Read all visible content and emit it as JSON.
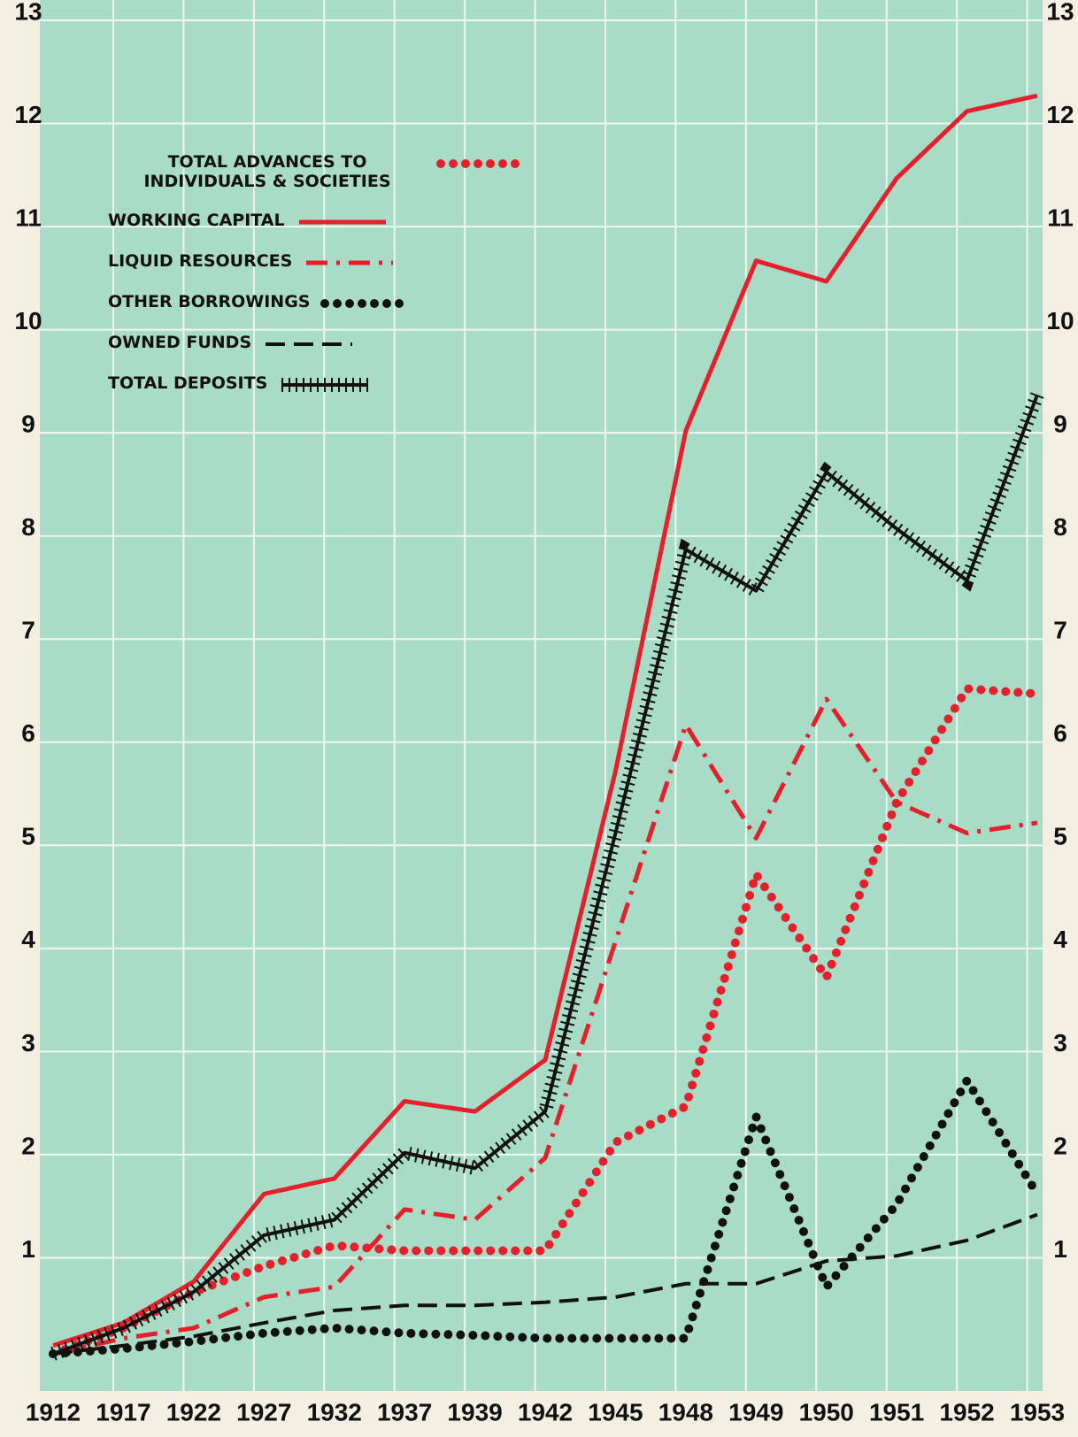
{
  "chart_data": {
    "type": "line",
    "categories": [
      "1912",
      "1917",
      "1922",
      "1927",
      "1932",
      "1937",
      "1939",
      "1942",
      "1945",
      "1948",
      "1949",
      "1950",
      "1951",
      "1952",
      "1953"
    ],
    "ylim": [
      0,
      13
    ],
    "yticks": [
      1,
      2,
      3,
      4,
      5,
      6,
      7,
      8,
      9,
      10,
      11,
      12,
      13
    ],
    "grid": true,
    "series": [
      {
        "name": "TOTAL ADVANCES TO INDIVIDUALS & SOCIETIES",
        "color": "#e3202b",
        "style": "dots",
        "values": [
          0,
          0.25,
          0.6,
          0.85,
          1.05,
          1.0,
          1.0,
          1.0,
          2.05,
          2.4,
          4.65,
          3.65,
          5.35,
          6.45,
          6.4
        ]
      },
      {
        "name": "WORKING CAPITAL",
        "color": "#e3202b",
        "style": "solid",
        "values": [
          0.08,
          0.3,
          0.7,
          1.55,
          1.7,
          2.45,
          2.35,
          2.85,
          5.65,
          8.95,
          10.6,
          10.4,
          11.4,
          12.05,
          12.2
        ]
      },
      {
        "name": "LIQUID RESOURCES",
        "color": "#e3202b",
        "style": "dashdot",
        "values": [
          0,
          0.15,
          0.25,
          0.55,
          0.65,
          1.4,
          1.3,
          1.9,
          4.0,
          6.1,
          5.0,
          6.35,
          5.35,
          5.05,
          5.15
        ]
      },
      {
        "name": "OTHER BORROWINGS",
        "color": "#111111",
        "style": "dots",
        "values": [
          0,
          0.05,
          0.12,
          0.2,
          0.25,
          0.2,
          0.18,
          0.15,
          0.15,
          0.15,
          2.3,
          0.65,
          1.45,
          2.65,
          1.55
        ]
      },
      {
        "name": "OWNED FUNDS",
        "color": "#111111",
        "style": "dashed",
        "values": [
          0,
          0.08,
          0.17,
          0.3,
          0.42,
          0.47,
          0.47,
          0.5,
          0.55,
          0.68,
          0.68,
          0.9,
          0.95,
          1.1,
          1.35
        ]
      },
      {
        "name": "TOTAL DEPOSITS",
        "color": "#111111",
        "style": "hatched",
        "values": [
          0,
          0.25,
          0.6,
          1.15,
          1.3,
          1.95,
          1.8,
          2.35,
          5.05,
          7.8,
          7.4,
          8.55,
          8.0,
          7.5,
          9.3
        ]
      }
    ]
  }
}
